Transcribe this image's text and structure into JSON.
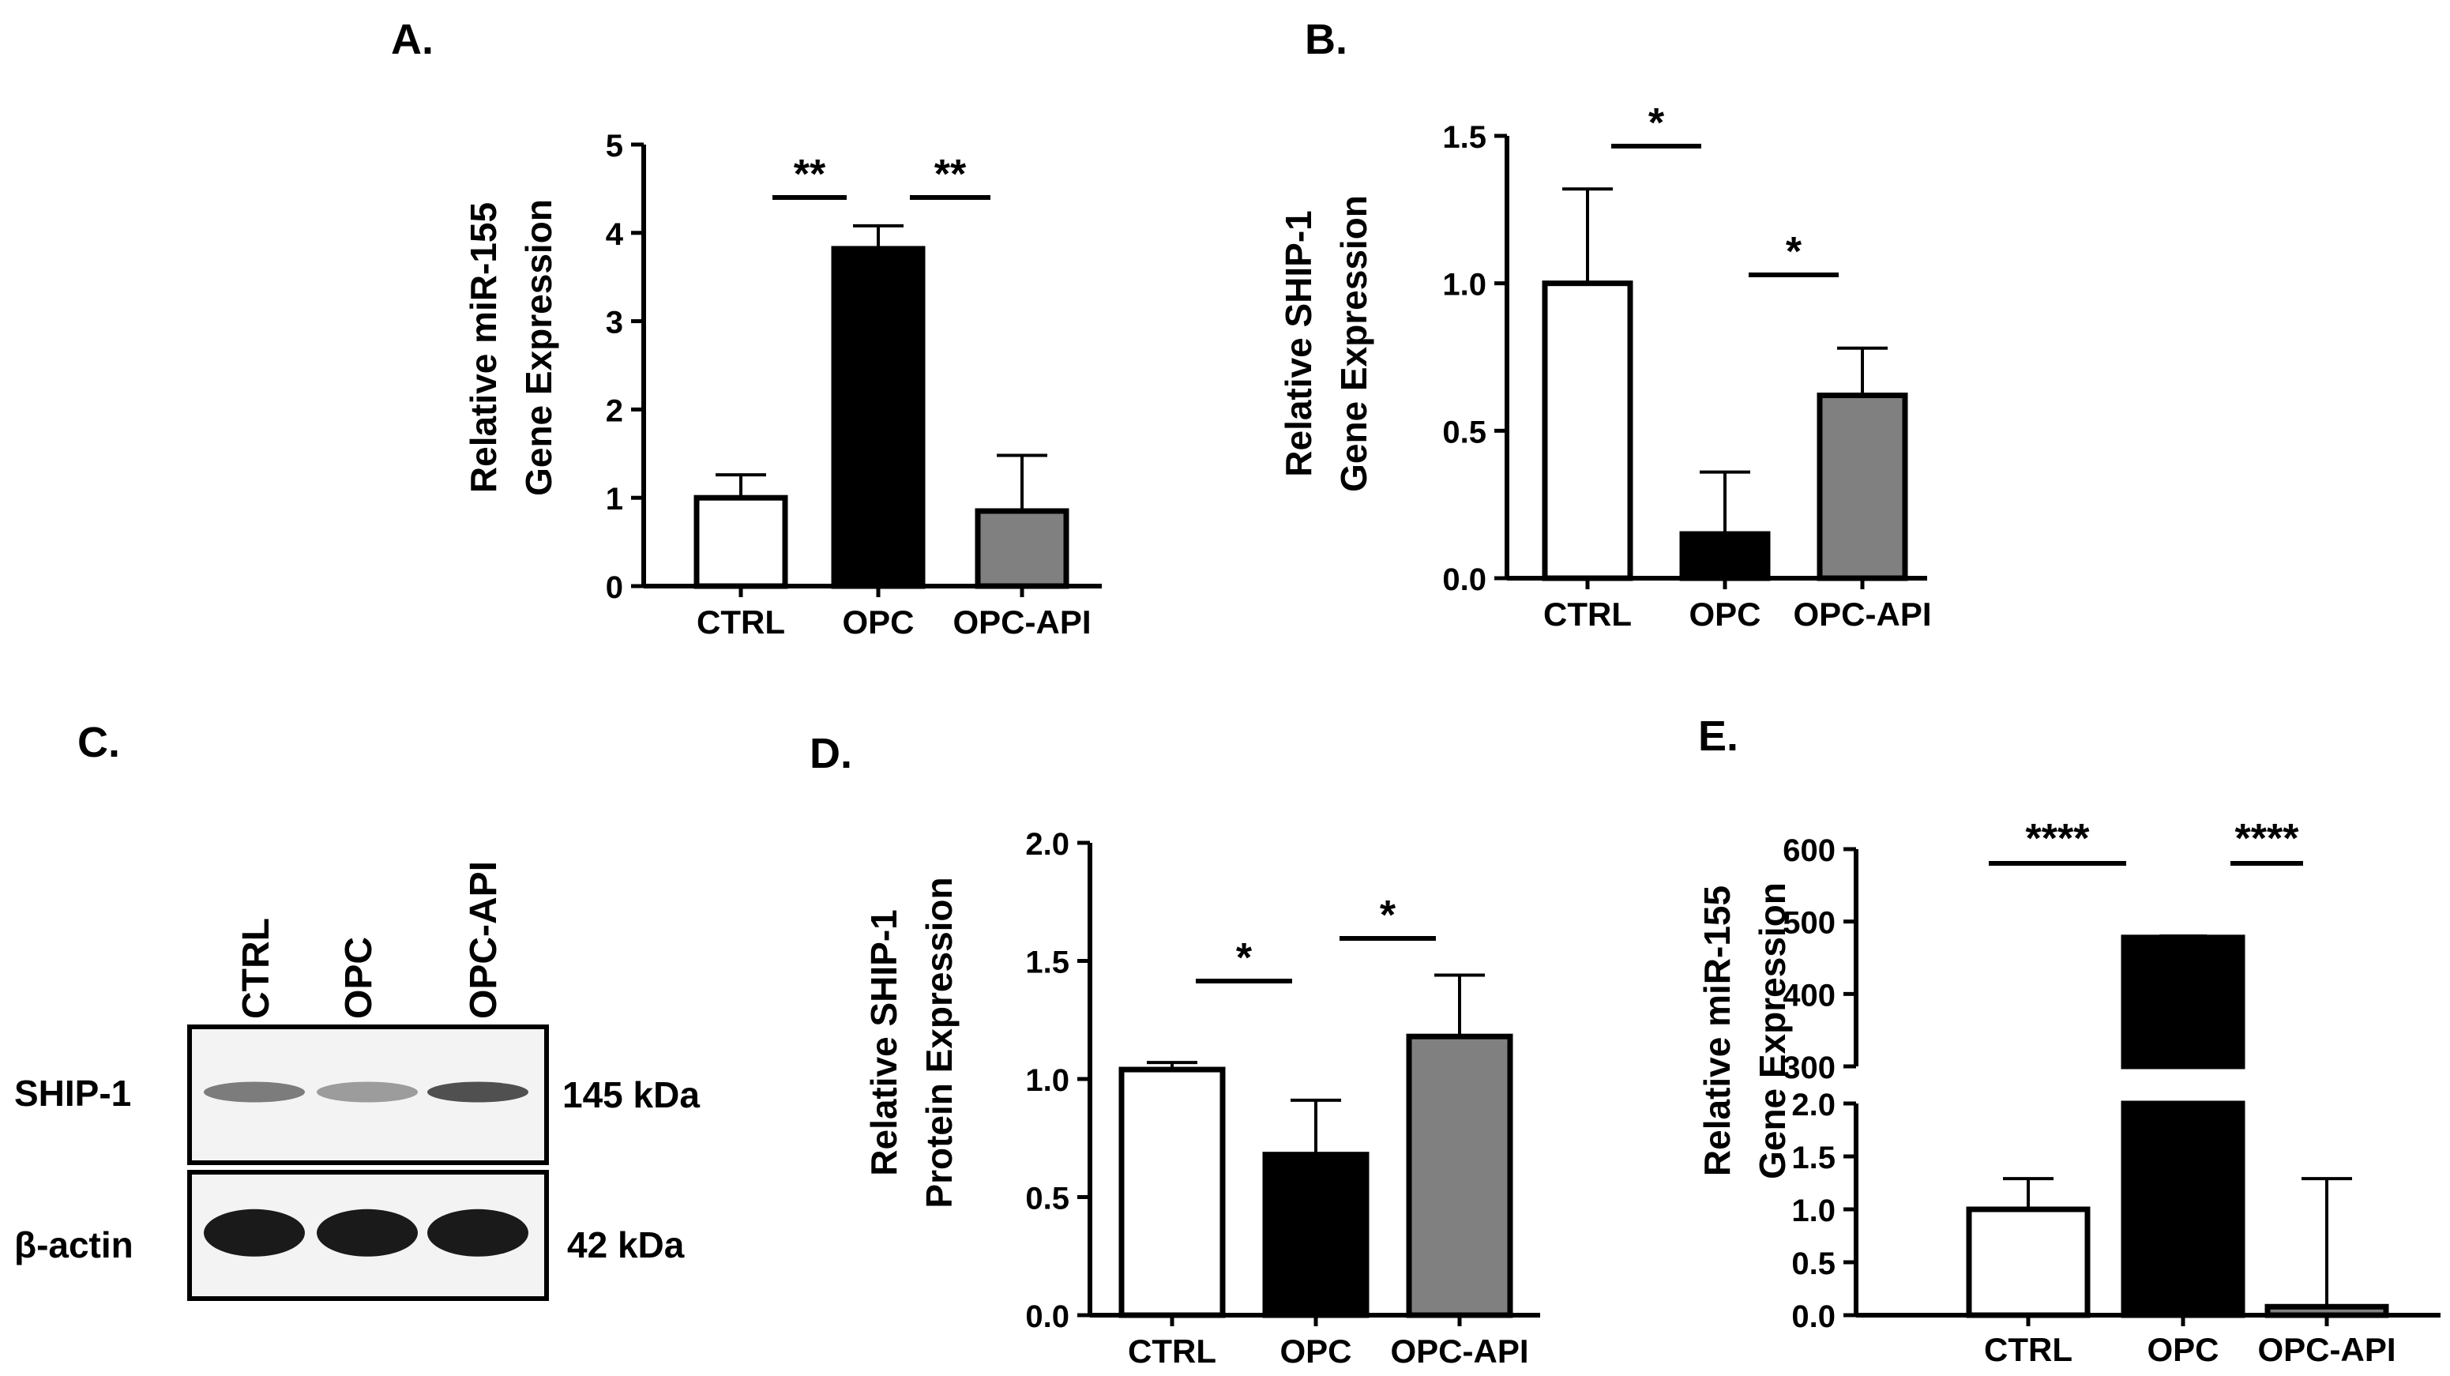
{
  "colors": {
    "ctrl": "#ffffff",
    "opc": "#000000",
    "opc_api": "#808080",
    "axis": "#000000",
    "blot_bg": "#f3f3f3",
    "blot_band": "#1a1a1a"
  },
  "chart_data": [
    {
      "id": "A",
      "panel_label": "A.",
      "type": "bar",
      "title": "",
      "ylabel": [
        "Relative miR-155",
        "Gene Expression"
      ],
      "xlabel": "",
      "categories": [
        "CTRL",
        "OPC",
        "OPC-API"
      ],
      "values": [
        1.0,
        3.82,
        0.85
      ],
      "errors": [
        0.26,
        0.26,
        0.63
      ],
      "ylim": [
        0,
        5
      ],
      "yticks": [
        0,
        1,
        2,
        3,
        4,
        5
      ],
      "tick_labels": [
        "0",
        "1",
        "2",
        "3",
        "4",
        "5"
      ],
      "significance": [
        {
          "from": 0,
          "to": 1,
          "label": "**"
        },
        {
          "from": 1,
          "to": 2,
          "label": "**"
        }
      ]
    },
    {
      "id": "B",
      "panel_label": "B.",
      "type": "bar",
      "title": "",
      "ylabel": [
        "Relative SHIP-1",
        "Gene Expression"
      ],
      "xlabel": "",
      "categories": [
        "CTRL",
        "OPC",
        "OPC-API"
      ],
      "values": [
        1.0,
        0.15,
        0.62
      ],
      "errors": [
        0.32,
        0.21,
        0.16
      ],
      "ylim": [
        0,
        1.5
      ],
      "yticks": [
        0,
        0.5,
        1.0,
        1.5
      ],
      "tick_labels": [
        "0.0",
        "0.5",
        "1.0",
        "1.5"
      ],
      "significance": [
        {
          "from": 0,
          "to": 1,
          "label": "*"
        },
        {
          "from": 1,
          "to": 2,
          "label": "*"
        }
      ]
    },
    {
      "id": "D",
      "panel_label": "D.",
      "type": "bar",
      "title": "",
      "ylabel": [
        "Relative SHIP-1",
        "Protein Expression"
      ],
      "xlabel": "",
      "categories": [
        "CTRL",
        "OPC",
        "OPC-API"
      ],
      "values": [
        1.04,
        0.68,
        1.18
      ],
      "errors": [
        0.03,
        0.23,
        0.26
      ],
      "ylim": [
        0,
        2.0
      ],
      "yticks": [
        0,
        0.5,
        1.0,
        1.5,
        2.0
      ],
      "tick_labels": [
        "0.0",
        "0.5",
        "1.0",
        "1.5",
        "2.0"
      ],
      "significance": [
        {
          "from": 0,
          "to": 1,
          "label": "*"
        },
        {
          "from": 1,
          "to": 2,
          "label": "*"
        }
      ]
    },
    {
      "id": "E",
      "panel_label": "E.",
      "type": "bar",
      "title": "",
      "ylabel": [
        "Relative miR-155",
        "Gene Expression"
      ],
      "xlabel": "",
      "categories": [
        "CTRL",
        "OPC",
        "OPC-API"
      ],
      "values": [
        1.0,
        478,
        0.08
      ],
      "errors": [
        0.29,
        2,
        1.21
      ],
      "broken_axis": {
        "lower": {
          "ylim": [
            0,
            2.0
          ],
          "yticks": [
            0,
            0.5,
            1.0,
            1.5,
            2.0
          ],
          "tick_labels": [
            "0.0",
            "0.5",
            "1.0",
            "1.5",
            "2.0"
          ]
        },
        "upper": {
          "ylim": [
            300,
            600
          ],
          "yticks": [
            300,
            400,
            500,
            600
          ],
          "tick_labels": [
            "300",
            "400",
            "500",
            "600"
          ]
        }
      },
      "significance": [
        {
          "from": 0,
          "to": 1,
          "label": "****"
        },
        {
          "from": 1,
          "to": 2,
          "label": "****"
        }
      ]
    }
  ],
  "blot": {
    "panel_label": "C.",
    "lanes": [
      "CTRL",
      "OPC",
      "OPC-API"
    ],
    "rows": [
      {
        "label": "SHIP-1",
        "size": "145 kDa",
        "intensity": [
          0.55,
          0.4,
          0.75
        ]
      },
      {
        "label": "β-actin",
        "size": "42 kDa",
        "intensity": [
          1.0,
          1.0,
          1.0
        ]
      }
    ]
  }
}
